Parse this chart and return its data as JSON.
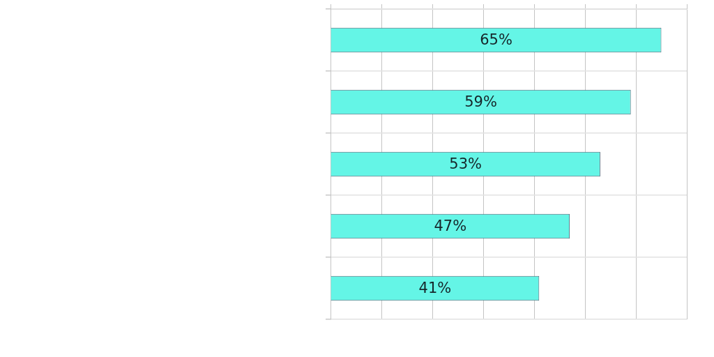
{
  "chart_data": {
    "type": "bar",
    "orientation": "horizontal",
    "categories": [
      null,
      null,
      null,
      null,
      null
    ],
    "values": [
      65,
      59,
      53,
      47,
      41
    ],
    "color": "#64f5e6",
    "value_labels": [
      "65%",
      "59%",
      "53%",
      "47%",
      "41%"
    ],
    "xlim": [
      0,
      70
    ],
    "xticks": [
      {
        "value": 0,
        "label": null
      },
      {
        "value": 10,
        "label": null
      },
      {
        "value": 20,
        "label": null
      },
      {
        "value": 30,
        "label": null
      },
      {
        "value": 40,
        "label": null
      },
      {
        "value": 50,
        "label": null
      },
      {
        "value": 60,
        "label": null
      },
      {
        "value": 70,
        "label": null
      }
    ],
    "tick_labels": false,
    "grid": true
  }
}
